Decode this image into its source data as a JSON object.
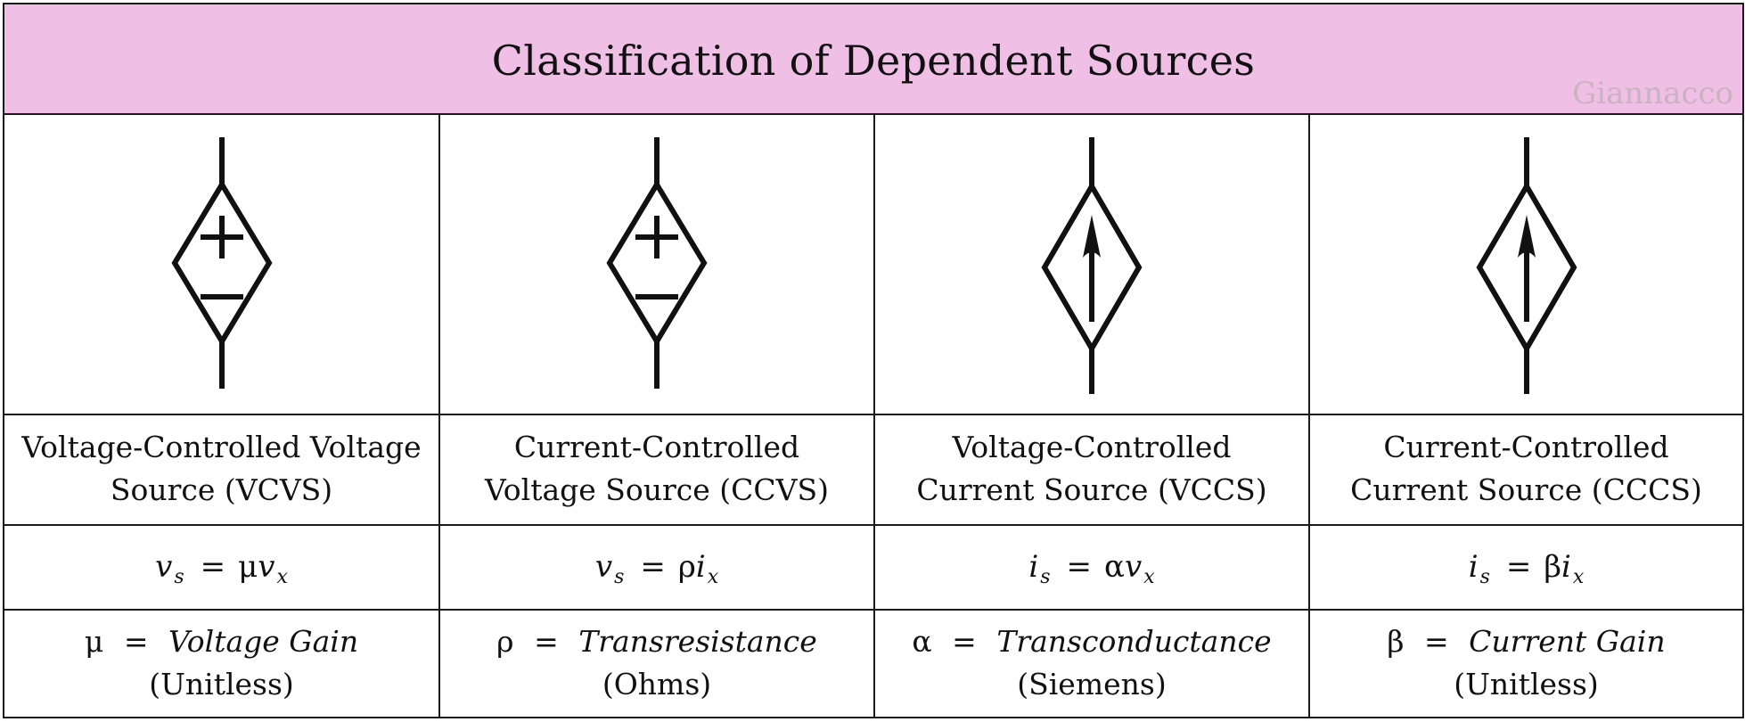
{
  "title": "Classification of Dependent Sources",
  "watermark": "Giannacco",
  "columns": [
    {
      "symbol": "diamond-voltage-source",
      "name_line1": "Voltage-Controlled Voltage",
      "name_line2": "Source (VCVS)",
      "eq_lhs": "v",
      "eq_lhs_sub": "s",
      "eq_sign": "=",
      "eq_coef": "μ",
      "eq_var": "v",
      "eq_var_sub": "x",
      "param_symbol": "μ",
      "param_sign": "=",
      "param_name": "Voltage Gain",
      "param_unit": "(Unitless)"
    },
    {
      "symbol": "diamond-voltage-source",
      "name_line1": "Current-Controlled",
      "name_line2": "Voltage Source (CCVS)",
      "eq_lhs": "v",
      "eq_lhs_sub": "s",
      "eq_sign": "=",
      "eq_coef": "ρ",
      "eq_var": "i",
      "eq_var_sub": "x",
      "param_symbol": "ρ",
      "param_sign": "=",
      "param_name": "Transresistance",
      "param_unit": "(Ohms)"
    },
    {
      "symbol": "diamond-current-source",
      "name_line1": "Voltage-Controlled",
      "name_line2": "Current Source (VCCS)",
      "eq_lhs": "i",
      "eq_lhs_sub": "s",
      "eq_sign": "=",
      "eq_coef": "α",
      "eq_var": "v",
      "eq_var_sub": "x",
      "param_symbol": "α",
      "param_sign": "=",
      "param_name": "Transconductance",
      "param_unit": "(Siemens)"
    },
    {
      "symbol": "diamond-current-source",
      "name_line1": "Current-Controlled",
      "name_line2": "Current Source (CCCS)",
      "eq_lhs": "i",
      "eq_lhs_sub": "s",
      "eq_sign": "=",
      "eq_coef": "β",
      "eq_var": "i",
      "eq_var_sub": "x",
      "param_symbol": "β",
      "param_sign": "=",
      "param_name": "Current Gain",
      "param_unit": "(Unitless)"
    }
  ]
}
